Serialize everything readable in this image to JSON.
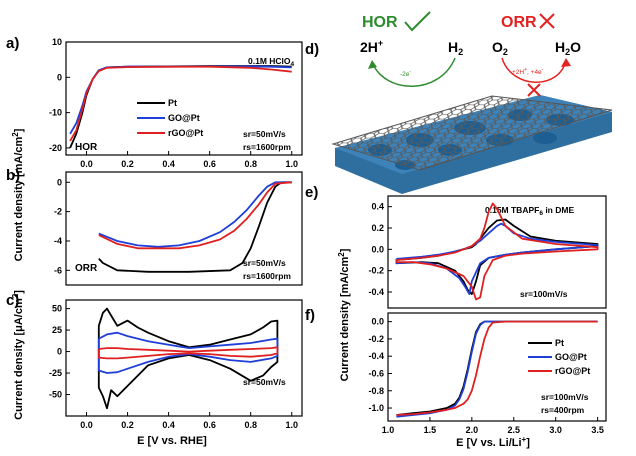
{
  "colors": {
    "pt": "#000000",
    "go": "#1f3fd8",
    "rgo": "#e02020",
    "hor": "#2e8b2e",
    "orr": "#e32222",
    "sub": "#2f6f9f",
    "net": "#6a6a6a"
  },
  "legend": {
    "pt": "Pt",
    "go": "GO@Pt",
    "rgo": "rGO@Pt"
  },
  "panels": {
    "a": {
      "letter": "a)",
      "note1": "0.1M HClO",
      "note1_sub": "4",
      "note2": "sr=50mV/s",
      "note3": "rs=1600rpm",
      "label": "HOR"
    },
    "b": {
      "letter": "b)",
      "note2": "sr=50mV/s",
      "note3": "rs=1600rpm",
      "label": "ORR"
    },
    "c": {
      "letter": "c)",
      "note2": "sr=50mV/s"
    },
    "d": {
      "letter": "d)",
      "hor_title": "HOR",
      "orr_title": "ORR",
      "react_left": "2H",
      "react_left_sup": "+",
      "prod_left": "H",
      "prod_left_sub": "2",
      "react_right": "O",
      "react_right_sub": "2",
      "prod_right": "H",
      "prod_right_sub": "2",
      "prod_right_tail": "O",
      "arrow_left": "-2e",
      "arrow_left_sup": "-",
      "arrow_right": "+2H",
      "arrow_right_sup": "+",
      "arrow_right_tail": ", +4e",
      "arrow_right_sup2": "-"
    },
    "e": {
      "letter": "e)",
      "note1": "0.15M TBAPF",
      "note1_sub": "6",
      "note1_tail": " in DME",
      "note2": "sr=100mV/s"
    },
    "f": {
      "letter": "f)",
      "note2": "sr=100mV/s",
      "note3": "rs=400rpm"
    }
  },
  "axes": {
    "left_ylabel_ab": "Current density [mA/cm",
    "left_ylabel_ab_sup": "2",
    "left_ylabel_ab_tail": "]",
    "left_ylabel_c": "Current density [μA/cm",
    "left_ylabel_c_sup": "2",
    "left_ylabel_c_tail": "]",
    "left_xlabel": "E [V vs. RHE]",
    "right_ylabel": "Current density [mA/cm",
    "right_ylabel_sup": "2",
    "right_ylabel_tail": "]",
    "right_xlabel": "E [V vs. Li/Li",
    "right_xlabel_sup": "+",
    "right_xlabel_tail": "]"
  },
  "chart_data": [
    {
      "panel": "a",
      "type": "line",
      "xlim": [
        -0.1,
        1.05
      ],
      "ylim": [
        -22,
        10
      ],
      "xticks": [
        0.0,
        0.2,
        0.4,
        0.6,
        0.8,
        1.0
      ],
      "yticks": [
        10,
        0,
        -10,
        -20
      ],
      "series": [
        {
          "name": "Pt",
          "x": [
            -0.08,
            -0.05,
            -0.02,
            0.0,
            0.03,
            0.06,
            0.1,
            0.2,
            0.4,
            0.6,
            0.8,
            0.9,
            1.0
          ],
          "y": [
            -20,
            -16,
            -10,
            -5,
            -0.5,
            2.0,
            2.8,
            3.0,
            3.1,
            3.2,
            3.2,
            3.2,
            3.0
          ]
        },
        {
          "name": "GO@Pt",
          "x": [
            -0.08,
            -0.05,
            -0.02,
            0.0,
            0.03,
            0.06,
            0.1,
            0.2,
            0.4,
            0.6,
            0.8,
            0.9,
            1.0
          ],
          "y": [
            -16,
            -13,
            -8,
            -4,
            -0.5,
            2.0,
            2.8,
            3.0,
            3.0,
            3.1,
            3.1,
            3.0,
            2.8
          ]
        },
        {
          "name": "rGO@Pt",
          "x": [
            -0.08,
            -0.05,
            -0.02,
            0.0,
            0.03,
            0.06,
            0.1,
            0.2,
            0.4,
            0.6,
            0.8,
            0.9,
            1.0
          ],
          "y": [
            -18,
            -15,
            -9,
            -4.5,
            -0.5,
            1.8,
            2.7,
            2.9,
            3.0,
            3.0,
            2.7,
            2.2,
            1.6
          ]
        }
      ]
    },
    {
      "panel": "b",
      "type": "line",
      "xlim": [
        -0.1,
        1.05
      ],
      "ylim": [
        -7,
        0.7
      ],
      "yticks": [
        0,
        -2,
        -4,
        -6
      ],
      "series": [
        {
          "name": "Pt",
          "x": [
            0.06,
            0.08,
            0.15,
            0.3,
            0.5,
            0.7,
            0.76,
            0.8,
            0.84,
            0.88,
            0.92,
            0.95,
            1.0
          ],
          "y": [
            -5.2,
            -5.5,
            -6.0,
            -6.1,
            -6.1,
            -6.0,
            -5.5,
            -4.5,
            -3.0,
            -1.4,
            -0.3,
            0.0,
            0.0
          ]
        },
        {
          "name": "GO@Pt",
          "x": [
            0.06,
            0.15,
            0.25,
            0.35,
            0.45,
            0.55,
            0.65,
            0.72,
            0.78,
            0.84,
            0.88,
            0.92,
            1.0
          ],
          "y": [
            -3.5,
            -4.0,
            -4.3,
            -4.4,
            -4.3,
            -4.0,
            -3.4,
            -2.7,
            -1.9,
            -0.9,
            -0.3,
            0.0,
            0.0
          ]
        },
        {
          "name": "rGO@Pt",
          "x": [
            0.06,
            0.15,
            0.25,
            0.35,
            0.45,
            0.55,
            0.65,
            0.72,
            0.78,
            0.84,
            0.88,
            0.92,
            1.0
          ],
          "y": [
            -3.6,
            -4.2,
            -4.5,
            -4.5,
            -4.5,
            -4.3,
            -3.9,
            -3.3,
            -2.5,
            -1.5,
            -0.7,
            -0.1,
            0.0
          ]
        }
      ]
    },
    {
      "panel": "c",
      "type": "line",
      "xlim": [
        -0.1,
        1.05
      ],
      "ylim": [
        -75,
        60
      ],
      "xticks": [
        0.0,
        0.2,
        0.4,
        0.6,
        0.8,
        1.0
      ],
      "yticks": [
        50,
        25,
        0,
        -25,
        -50
      ],
      "series": [
        {
          "name": "Pt",
          "x": [
            0.06,
            0.08,
            0.1,
            0.12,
            0.15,
            0.2,
            0.25,
            0.3,
            0.4,
            0.5,
            0.6,
            0.7,
            0.8,
            0.86,
            0.9,
            0.93,
            0.93,
            0.9,
            0.86,
            0.8,
            0.7,
            0.6,
            0.5,
            0.4,
            0.3,
            0.25,
            0.2,
            0.15,
            0.12,
            0.1,
            0.08,
            0.06,
            0.06
          ],
          "y": [
            30,
            45,
            50,
            42,
            30,
            36,
            28,
            22,
            12,
            5,
            8,
            14,
            20,
            28,
            35,
            36,
            -12,
            -18,
            -28,
            -34,
            -20,
            -10,
            -4,
            -8,
            -16,
            -28,
            -40,
            -52,
            -45,
            -66,
            -52,
            -42,
            30
          ]
        },
        {
          "name": "GO@Pt",
          "x": [
            0.06,
            0.1,
            0.15,
            0.2,
            0.3,
            0.4,
            0.5,
            0.6,
            0.7,
            0.8,
            0.9,
            0.93,
            0.93,
            0.9,
            0.8,
            0.7,
            0.6,
            0.5,
            0.4,
            0.3,
            0.2,
            0.15,
            0.1,
            0.06,
            0.06
          ],
          "y": [
            15,
            20,
            22,
            18,
            12,
            8,
            4,
            6,
            8,
            10,
            14,
            15,
            -5,
            -8,
            -12,
            -10,
            -6,
            -3,
            -6,
            -12,
            -20,
            -24,
            -25,
            -22,
            15
          ]
        },
        {
          "name": "rGO@Pt",
          "x": [
            0.06,
            0.1,
            0.15,
            0.2,
            0.3,
            0.4,
            0.5,
            0.6,
            0.7,
            0.8,
            0.9,
            0.93,
            0.93,
            0.9,
            0.8,
            0.7,
            0.6,
            0.5,
            0.4,
            0.3,
            0.2,
            0.15,
            0.1,
            0.06,
            0.06
          ],
          "y": [
            3,
            4,
            4,
            3,
            2,
            1,
            0,
            1,
            2,
            3,
            4,
            5,
            -2,
            -4,
            -6,
            -5,
            -3,
            -2,
            -3,
            -5,
            -7,
            -8,
            -8,
            -7,
            3
          ]
        }
      ]
    },
    {
      "panel": "e",
      "type": "line",
      "xlim": [
        1.0,
        3.6
      ],
      "ylim": [
        -0.55,
        0.5
      ],
      "yticks": [
        0.4,
        0.2,
        0.0,
        -0.2,
        -0.4
      ],
      "series": [
        {
          "name": "Pt",
          "x": [
            1.1,
            1.4,
            1.6,
            1.8,
            1.9,
            2.0,
            2.05,
            2.1,
            2.2,
            2.3,
            2.4,
            2.5,
            2.7,
            3.0,
            3.5,
            3.5,
            3.0,
            2.6,
            2.4,
            2.2,
            2.1,
            2.05,
            2.0,
            1.95,
            1.9,
            1.8,
            1.6,
            1.4,
            1.1,
            1.1
          ],
          "y": [
            -0.1,
            -0.08,
            -0.06,
            -0.02,
            0.0,
            0.02,
            0.05,
            0.1,
            0.2,
            0.27,
            0.28,
            0.22,
            0.12,
            0.08,
            0.05,
            0.03,
            0.0,
            -0.03,
            -0.05,
            -0.08,
            -0.15,
            -0.3,
            -0.42,
            -0.38,
            -0.3,
            -0.2,
            -0.13,
            -0.12,
            -0.13,
            -0.1
          ]
        },
        {
          "name": "GO@Pt",
          "x": [
            1.1,
            1.4,
            1.6,
            1.8,
            1.9,
            2.0,
            2.1,
            2.2,
            2.3,
            2.35,
            2.4,
            2.5,
            2.7,
            3.0,
            3.5,
            3.5,
            3.0,
            2.6,
            2.4,
            2.2,
            2.1,
            2.0,
            1.97,
            1.92,
            1.85,
            1.7,
            1.5,
            1.3,
            1.1,
            1.1
          ],
          "y": [
            -0.09,
            -0.07,
            -0.05,
            -0.02,
            0.0,
            0.03,
            0.08,
            0.15,
            0.22,
            0.24,
            0.22,
            0.15,
            0.1,
            0.07,
            0.04,
            0.03,
            0.0,
            -0.03,
            -0.05,
            -0.08,
            -0.13,
            -0.3,
            -0.42,
            -0.35,
            -0.27,
            -0.18,
            -0.13,
            -0.12,
            -0.13,
            -0.09
          ]
        },
        {
          "name": "rGO@Pt",
          "x": [
            1.1,
            1.4,
            1.6,
            1.8,
            1.9,
            2.0,
            2.1,
            2.15,
            2.2,
            2.25,
            2.3,
            2.4,
            2.6,
            3.0,
            3.5,
            3.5,
            3.0,
            2.6,
            2.4,
            2.25,
            2.15,
            2.1,
            2.05,
            2.0,
            1.9,
            1.7,
            1.5,
            1.3,
            1.1,
            1.1
          ],
          "y": [
            -0.1,
            -0.08,
            -0.06,
            -0.03,
            0.0,
            0.03,
            0.1,
            0.2,
            0.35,
            0.43,
            0.38,
            0.22,
            0.1,
            0.05,
            0.02,
            0.0,
            -0.02,
            -0.04,
            -0.06,
            -0.1,
            -0.25,
            -0.45,
            -0.47,
            -0.35,
            -0.25,
            -0.18,
            -0.14,
            -0.12,
            -0.12,
            -0.1
          ]
        }
      ]
    },
    {
      "panel": "f",
      "type": "line",
      "xlim": [
        1.0,
        3.6
      ],
      "ylim": [
        -1.15,
        0.1
      ],
      "xticks": [
        1.0,
        1.5,
        2.0,
        2.5,
        3.0,
        3.5
      ],
      "yticks": [
        0.0,
        -0.2,
        -0.4,
        -0.6,
        -0.8,
        -1.0
      ],
      "series": [
        {
          "name": "Pt",
          "x": [
            1.1,
            1.3,
            1.5,
            1.7,
            1.8,
            1.85,
            1.9,
            1.95,
            2.0,
            2.05,
            2.1,
            2.15,
            2.2,
            2.4,
            2.8,
            3.5
          ],
          "y": [
            -1.08,
            -1.06,
            -1.04,
            -1.0,
            -0.95,
            -0.88,
            -0.75,
            -0.55,
            -0.32,
            -0.12,
            -0.03,
            0.0,
            0.0,
            0.0,
            0.0,
            0.0
          ]
        },
        {
          "name": "GO@Pt",
          "x": [
            1.1,
            1.3,
            1.5,
            1.7,
            1.8,
            1.85,
            1.9,
            1.95,
            2.0,
            2.05,
            2.1,
            2.15,
            2.2,
            2.4,
            2.8,
            3.5
          ],
          "y": [
            -1.1,
            -1.08,
            -1.06,
            -1.02,
            -0.97,
            -0.9,
            -0.78,
            -0.58,
            -0.35,
            -0.14,
            -0.04,
            0.0,
            0.0,
            0.0,
            0.0,
            0.0
          ]
        },
        {
          "name": "rGO@Pt",
          "x": [
            1.1,
            1.3,
            1.5,
            1.7,
            1.8,
            1.9,
            1.95,
            2.0,
            2.05,
            2.1,
            2.15,
            2.2,
            2.25,
            2.4,
            2.8,
            3.5
          ],
          "y": [
            -1.08,
            -1.07,
            -1.05,
            -1.02,
            -1.0,
            -0.95,
            -0.9,
            -0.8,
            -0.62,
            -0.4,
            -0.2,
            -0.07,
            -0.01,
            0.0,
            0.0,
            0.0
          ]
        }
      ]
    }
  ]
}
